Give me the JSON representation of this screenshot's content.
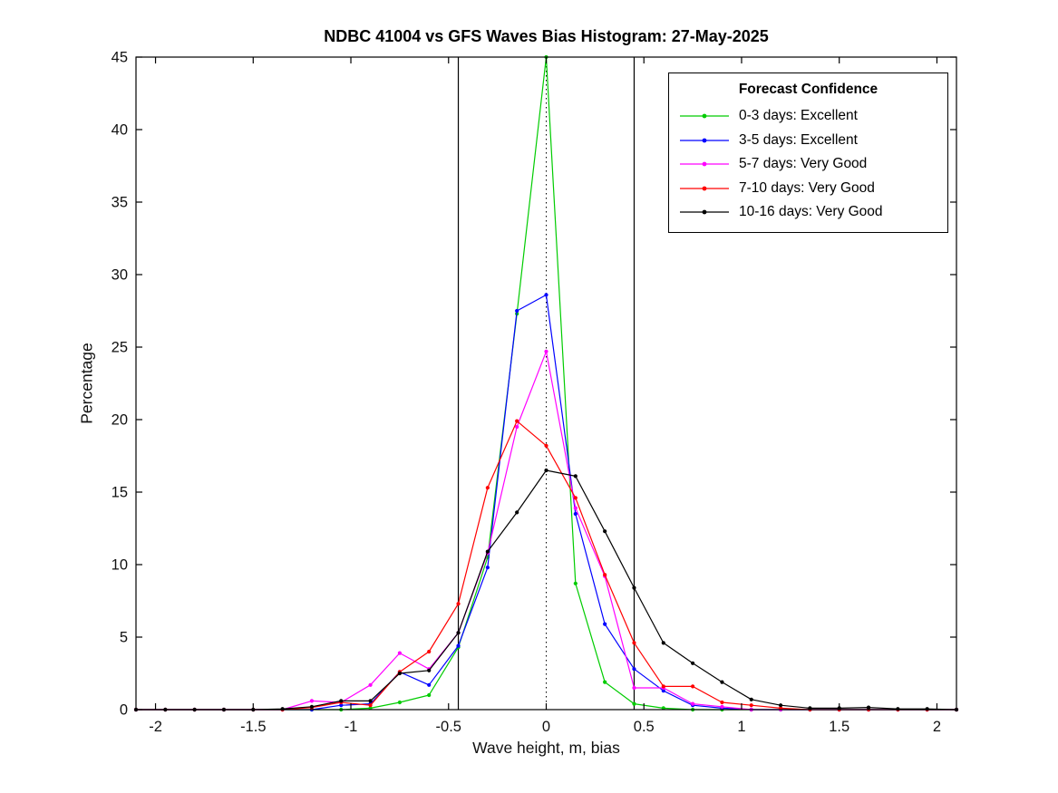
{
  "figure": {
    "title": "NDBC 41004 vs GFS Waves Bias Histogram: 27-May-2025",
    "xlabel": "Wave height, m, bias",
    "ylabel": "Percentage",
    "legend_title": "Forecast Confidence"
  },
  "chart_data": {
    "type": "line",
    "title": "NDBC 41004 vs GFS Waves Bias Histogram: 27-May-2025",
    "xlabel": "Wave height, m, bias",
    "ylabel": "Percentage",
    "xlim": [
      -2.1,
      2.1
    ],
    "ylim": [
      0,
      45
    ],
    "xticks": [
      -2,
      -1.5,
      -1,
      -0.5,
      0,
      0.5,
      1,
      1.5,
      2
    ],
    "yticks": [
      0,
      5,
      10,
      15,
      20,
      25,
      30,
      35,
      40,
      45
    ],
    "grid": false,
    "x": [
      -2.1,
      -1.95,
      -1.8,
      -1.65,
      -1.5,
      -1.35,
      -1.2,
      -1.05,
      -0.9,
      -0.75,
      -0.6,
      -0.45,
      -0.3,
      -0.15,
      0,
      0.15,
      0.3,
      0.45,
      0.6,
      0.75,
      0.9,
      1.05,
      1.2,
      1.35,
      1.5,
      1.65,
      1.8,
      1.95,
      2.1
    ],
    "series": [
      {
        "name": "0-3 days: Excellent",
        "color": "#00cc00",
        "values": [
          0,
          0,
          0,
          0,
          0,
          0,
          0,
          0,
          0.1,
          0.5,
          1.0,
          4.3,
          10.5,
          27.3,
          45,
          8.7,
          1.9,
          0.4,
          0.1,
          0,
          0,
          0,
          0,
          0,
          0,
          0,
          0,
          0,
          0
        ]
      },
      {
        "name": "3-5 days: Excellent",
        "color": "#0000ff",
        "values": [
          0,
          0,
          0,
          0,
          0,
          0,
          0,
          0.3,
          0.4,
          2.6,
          1.7,
          4.4,
          9.8,
          27.5,
          28.6,
          13.5,
          5.9,
          2.8,
          1.3,
          0.3,
          0.1,
          0,
          0,
          0,
          0,
          0,
          0,
          0,
          0
        ]
      },
      {
        "name": "5-7 days: Very Good",
        "color": "#ff00ff",
        "values": [
          0,
          0,
          0,
          0,
          0,
          0,
          0.6,
          0.5,
          1.7,
          3.9,
          2.8,
          5.3,
          10.8,
          19.5,
          24.7,
          13.9,
          9.2,
          1.5,
          1.5,
          0.4,
          0.2,
          0,
          0,
          0,
          0,
          0,
          0,
          0,
          0
        ]
      },
      {
        "name": "7-10 days: Very Good",
        "color": "#ff0000",
        "values": [
          0,
          0,
          0,
          0,
          0,
          0,
          0.15,
          0.5,
          0.3,
          2.6,
          4.0,
          7.3,
          15.3,
          19.9,
          18.2,
          14.6,
          9.3,
          4.6,
          1.6,
          1.6,
          0.5,
          0.3,
          0.1,
          0,
          0,
          0,
          0,
          0,
          0
        ]
      },
      {
        "name": "10-16 days: Very Good",
        "color": "#000000",
        "values": [
          0,
          0,
          0,
          0,
          0,
          0.05,
          0.2,
          0.6,
          0.6,
          2.5,
          2.7,
          5.3,
          10.9,
          13.6,
          16.5,
          16.1,
          12.3,
          8.4,
          4.6,
          3.2,
          1.9,
          0.7,
          0.3,
          0.1,
          0.1,
          0.15,
          0.05,
          0.05,
          0
        ]
      }
    ],
    "reference_lines": {
      "solid_x": [
        -0.45,
        0.45
      ],
      "dotted_x": [
        0
      ]
    },
    "legend": {
      "title": "Forecast Confidence",
      "position": "top-right"
    }
  }
}
